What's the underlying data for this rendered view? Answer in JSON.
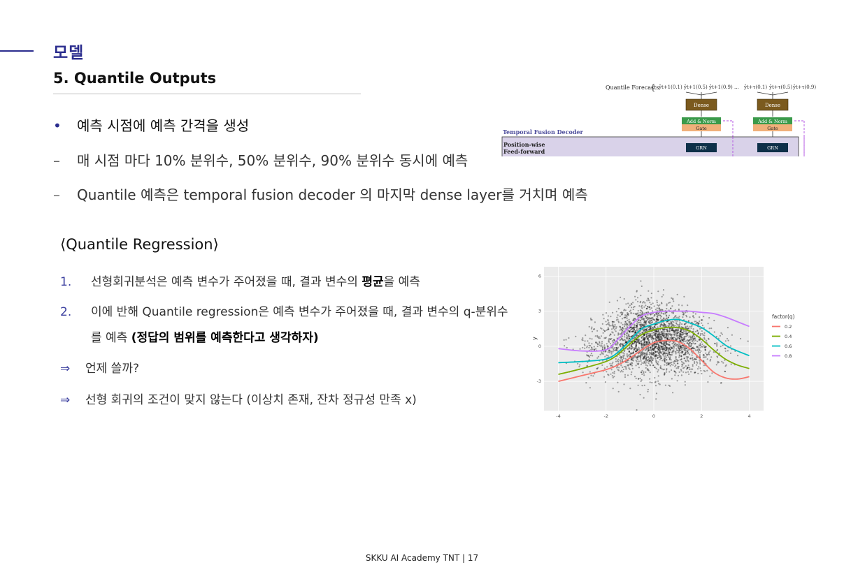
{
  "header": {
    "section": "모델",
    "subtitle": "5. Quantile Outputs"
  },
  "bullets": [
    {
      "mark": "•",
      "text": "예측 시점에 예측 간격을 생성"
    },
    {
      "mark": "–",
      "text": "매 시점 마다 10% 분위수, 50% 분위수, 90% 분위수 동시에 예측"
    },
    {
      "mark": "–",
      "text": "Quantile 예측은 temporal fusion decoder 의 마지막 dense layer를 거치며 예측"
    }
  ],
  "qr": {
    "heading": "⟨Quantile Regression⟩",
    "items": [
      {
        "num": "1.",
        "pre": "선형회귀분석은 예측 변수가 주어졌을 때, 결과 변수의 ",
        "bold": "평균",
        "post": "을 예측"
      },
      {
        "num": "2.",
        "pre": "이에 반해 Quantile regression은 예측 변수가 주어졌을 때, 결과 변수의 q-분위수"
      },
      {
        "cont": "를 예측 ",
        "bold": "(정답의 범위를 예측한다고 생각하자)"
      }
    ],
    "arrows": [
      {
        "mark": "⇒",
        "text": "언제 쓸까?"
      },
      {
        "mark": "⇒",
        "text": "선형 회귀의 조건이 맞지 않는다 (이상치 존재, 잔차 정규성 만족 x)"
      }
    ]
  },
  "tfd_figure": {
    "quantile_label": "Quantile Forecasts",
    "forecast_labels": [
      "ŷt+1(0.1)",
      "ŷt+1(0.5)",
      "ŷt+1(0.9)",
      "...",
      "ŷt+τ(0.1)",
      "ŷt+τ(0.5)",
      "ŷt+τ(0.9)"
    ],
    "dense": "Dense",
    "add_norm": "Add & Norm",
    "gate": "Gate",
    "decoder_title": "Temporal Fusion Decoder",
    "position_wise": "Position-wise",
    "feed_forward": "Feed-forward",
    "grn": "GRN",
    "colors": {
      "dense": "#7b5a1e",
      "add_norm": "#3a9a4a",
      "gate": "#f0b07a",
      "decoder_bg": "#d9d2e9",
      "grn": "#0e3049",
      "dashed": "#b04de0"
    }
  },
  "chart_data": {
    "type": "line",
    "title": "",
    "xlabel": "",
    "ylabel": "y",
    "xlim": [
      -4.6,
      4.6
    ],
    "ylim": [
      -5.5,
      6.8
    ],
    "x_ticks": [
      "-4",
      "-2",
      "0",
      "2",
      "4"
    ],
    "y_ticks": [
      "-3",
      "0",
      "3",
      "6"
    ],
    "grid": true,
    "background": "#ebebeb",
    "legend_title": "factor(q)",
    "legend_position": "right",
    "x": [
      -4,
      -3,
      -2,
      -1.5,
      -1,
      -0.5,
      0,
      0.5,
      1,
      1.5,
      2,
      2.5,
      3,
      3.5,
      4
    ],
    "series": [
      {
        "name": "0.2",
        "color": "#f8766d",
        "values": [
          -3.0,
          -2.5,
          -2.0,
          -1.6,
          -1.0,
          -0.3,
          0.3,
          0.5,
          0.4,
          -0.2,
          -1.2,
          -2.2,
          -2.7,
          -2.8,
          -2.6
        ]
      },
      {
        "name": "0.4",
        "color": "#7cae00",
        "values": [
          -2.4,
          -1.9,
          -1.3,
          -0.7,
          0.2,
          1.0,
          1.4,
          1.6,
          1.6,
          1.3,
          0.6,
          -0.3,
          -1.1,
          -1.6,
          -1.9
        ]
      },
      {
        "name": "0.6",
        "color": "#00bfc4",
        "values": [
          -1.4,
          -1.3,
          -1.1,
          -0.5,
          0.5,
          1.5,
          1.9,
          2.2,
          2.3,
          2.0,
          1.6,
          0.9,
          0.1,
          -0.4,
          -0.8
        ]
      },
      {
        "name": "0.8",
        "color": "#c77cff",
        "values": [
          -0.2,
          -0.4,
          -0.3,
          0.6,
          1.7,
          2.6,
          2.9,
          3.0,
          3.0,
          3.0,
          2.9,
          2.8,
          2.5,
          2.1,
          1.7
        ]
      }
    ],
    "scatter": {
      "n": 2600,
      "x_mean": 0,
      "x_sd": 1.25,
      "y_peak": 1.1,
      "y_sd": 1.4,
      "color": "#000000"
    }
  },
  "footer": {
    "text": "SKKU AI Academy TNT | 17"
  }
}
